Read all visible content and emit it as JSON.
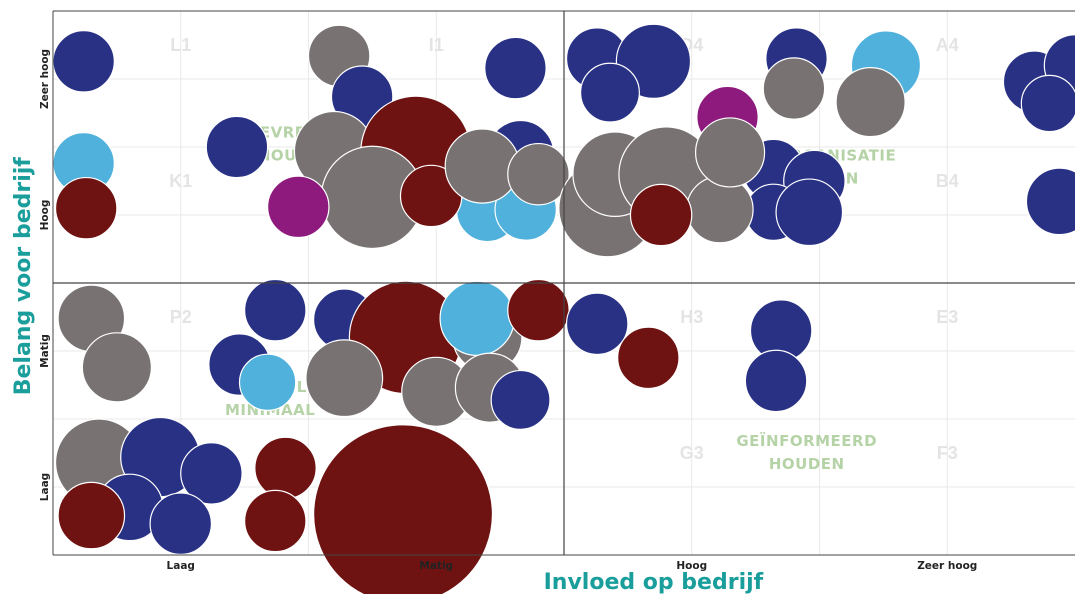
{
  "chart_data": {
    "type": "bubble",
    "title": "",
    "xlabel": "Invloed op bedrijf",
    "ylabel": "Belang voor bedrijf",
    "x_ticks": [
      "Laag",
      "Matig",
      "Hoog",
      "Zeer hoog"
    ],
    "y_ticks": [
      "Laag",
      "Matig",
      "Hoog",
      "Zeer hoog"
    ],
    "xlim": [
      0,
      4
    ],
    "ylim": [
      0,
      4
    ],
    "colors": {
      "navy": "#293185",
      "gray": "#787273",
      "maroon": "#6f1312",
      "lightblue": "#4fb1dc",
      "magenta": "#8e1a7e",
      "axis_title": "#1a9e9b",
      "grid": "#e9e9e9",
      "frame": "#444444"
    },
    "cells": [
      {
        "label": "L1",
        "x": 0.5,
        "y": 3.75
      },
      {
        "label": "I1",
        "x": 1.5,
        "y": 3.75
      },
      {
        "label": "D4",
        "x": 2.5,
        "y": 3.75
      },
      {
        "label": "A4",
        "x": 3.5,
        "y": 3.75
      },
      {
        "label": "K1",
        "x": 0.5,
        "y": 2.75
      },
      {
        "label": "B4",
        "x": 3.5,
        "y": 2.75
      },
      {
        "label": "P2",
        "x": 0.5,
        "y": 1.75
      },
      {
        "label": "H3",
        "x": 2.5,
        "y": 1.75
      },
      {
        "label": "E3",
        "x": 3.5,
        "y": 1.75
      },
      {
        "label": "G3",
        "x": 2.5,
        "y": 0.75
      },
      {
        "label": "F3",
        "x": 3.5,
        "y": 0.75
      }
    ],
    "quadrant_labels": [
      {
        "lines": [
          "TEVREDEN",
          "HOUDEN"
        ],
        "x": 0.95,
        "y": 3.07
      },
      {
        "lines": [
          "OP DE ORGANISATIE",
          "BETREKKEN"
        ],
        "x": 2.95,
        "y": 2.9
      },
      {
        "lines": [
          "CONTROLE",
          "MINIMAAL"
        ],
        "x": 0.85,
        "y": 1.2
      },
      {
        "lines": [
          "GEÏNFORMEERD",
          "HOUDEN"
        ],
        "x": 2.95,
        "y": 0.8
      }
    ],
    "bubbles": [
      {
        "x": 0.12,
        "y": 3.63,
        "r": 0.12,
        "c": "navy"
      },
      {
        "x": 1.12,
        "y": 3.67,
        "r": 0.12,
        "c": "gray"
      },
      {
        "x": 1.21,
        "y": 3.37,
        "r": 0.12,
        "c": "navy"
      },
      {
        "x": 1.81,
        "y": 3.58,
        "r": 0.12,
        "c": "navy"
      },
      {
        "x": 2.13,
        "y": 3.65,
        "r": 0.12,
        "c": "navy"
      },
      {
        "x": 2.35,
        "y": 3.63,
        "r": 0.145,
        "c": "navy"
      },
      {
        "x": 2.18,
        "y": 3.4,
        "r": 0.115,
        "c": "navy"
      },
      {
        "x": 2.91,
        "y": 3.65,
        "r": 0.12,
        "c": "navy"
      },
      {
        "x": 3.26,
        "y": 3.6,
        "r": 0.135,
        "c": "lightblue"
      },
      {
        "x": 3.84,
        "y": 3.48,
        "r": 0.12,
        "c": "navy"
      },
      {
        "x": 4.0,
        "y": 3.6,
        "r": 0.12,
        "c": "navy"
      },
      {
        "x": 3.9,
        "y": 3.32,
        "r": 0.11,
        "c": "navy"
      },
      {
        "x": 2.9,
        "y": 3.43,
        "r": 0.12,
        "c": "gray"
      },
      {
        "x": 2.64,
        "y": 3.22,
        "r": 0.12,
        "c": "magenta"
      },
      {
        "x": 3.2,
        "y": 3.33,
        "r": 0.135,
        "c": "gray"
      },
      {
        "x": 0.72,
        "y": 3.0,
        "r": 0.12,
        "c": "navy"
      },
      {
        "x": 0.12,
        "y": 2.88,
        "r": 0.12,
        "c": "lightblue"
      },
      {
        "x": 0.13,
        "y": 2.55,
        "r": 0.12,
        "c": "maroon"
      },
      {
        "x": 1.83,
        "y": 2.95,
        "r": 0.13,
        "c": "navy"
      },
      {
        "x": 1.1,
        "y": 2.97,
        "r": 0.155,
        "c": "gray"
      },
      {
        "x": 1.42,
        "y": 2.97,
        "r": 0.215,
        "c": "maroon"
      },
      {
        "x": 1.25,
        "y": 2.63,
        "r": 0.2,
        "c": "gray"
      },
      {
        "x": 0.96,
        "y": 2.56,
        "r": 0.12,
        "c": "magenta"
      },
      {
        "x": 1.7,
        "y": 2.53,
        "r": 0.12,
        "c": "lightblue"
      },
      {
        "x": 1.85,
        "y": 2.54,
        "r": 0.12,
        "c": "lightblue"
      },
      {
        "x": 1.48,
        "y": 2.64,
        "r": 0.12,
        "c": "maroon"
      },
      {
        "x": 1.68,
        "y": 2.86,
        "r": 0.145,
        "c": "gray"
      },
      {
        "x": 1.9,
        "y": 2.8,
        "r": 0.12,
        "c": "gray"
      },
      {
        "x": 2.82,
        "y": 2.83,
        "r": 0.12,
        "c": "navy"
      },
      {
        "x": 2.98,
        "y": 2.75,
        "r": 0.12,
        "c": "navy"
      },
      {
        "x": 2.82,
        "y": 2.52,
        "r": 0.11,
        "c": "navy"
      },
      {
        "x": 2.96,
        "y": 2.52,
        "r": 0.13,
        "c": "navy"
      },
      {
        "x": 3.94,
        "y": 2.6,
        "r": 0.13,
        "c": "navy"
      },
      {
        "x": 2.17,
        "y": 2.55,
        "r": 0.19,
        "c": "gray"
      },
      {
        "x": 2.2,
        "y": 2.8,
        "r": 0.165,
        "c": "gray"
      },
      {
        "x": 2.4,
        "y": 2.8,
        "r": 0.185,
        "c": "gray"
      },
      {
        "x": 2.61,
        "y": 2.54,
        "r": 0.13,
        "c": "gray"
      },
      {
        "x": 2.65,
        "y": 2.96,
        "r": 0.135,
        "c": "gray"
      },
      {
        "x": 2.38,
        "y": 2.5,
        "r": 0.12,
        "c": "maroon"
      },
      {
        "x": 0.15,
        "y": 1.74,
        "r": 0.13,
        "c": "gray"
      },
      {
        "x": 0.87,
        "y": 1.8,
        "r": 0.12,
        "c": "navy"
      },
      {
        "x": 0.73,
        "y": 1.4,
        "r": 0.12,
        "c": "navy"
      },
      {
        "x": 0.84,
        "y": 1.27,
        "r": 0.11,
        "c": "lightblue"
      },
      {
        "x": 0.25,
        "y": 1.38,
        "r": 0.135,
        "c": "gray"
      },
      {
        "x": 1.14,
        "y": 1.73,
        "r": 0.12,
        "c": "navy"
      },
      {
        "x": 1.38,
        "y": 1.6,
        "r": 0.22,
        "c": "maroon"
      },
      {
        "x": 1.14,
        "y": 1.3,
        "r": 0.15,
        "c": "gray"
      },
      {
        "x": 1.7,
        "y": 1.6,
        "r": 0.135,
        "c": "gray"
      },
      {
        "x": 1.66,
        "y": 1.74,
        "r": 0.145,
        "c": "lightblue"
      },
      {
        "x": 1.9,
        "y": 1.8,
        "r": 0.12,
        "c": "maroon"
      },
      {
        "x": 1.5,
        "y": 1.2,
        "r": 0.135,
        "c": "gray"
      },
      {
        "x": 1.71,
        "y": 1.23,
        "r": 0.135,
        "c": "gray"
      },
      {
        "x": 1.83,
        "y": 1.14,
        "r": 0.115,
        "c": "navy"
      },
      {
        "x": 2.13,
        "y": 1.7,
        "r": 0.12,
        "c": "navy"
      },
      {
        "x": 2.33,
        "y": 1.45,
        "r": 0.12,
        "c": "maroon"
      },
      {
        "x": 2.85,
        "y": 1.65,
        "r": 0.12,
        "c": "navy"
      },
      {
        "x": 2.83,
        "y": 1.28,
        "r": 0.12,
        "c": "navy"
      },
      {
        "x": 0.18,
        "y": 0.68,
        "r": 0.17,
        "c": "gray"
      },
      {
        "x": 0.42,
        "y": 0.72,
        "r": 0.155,
        "c": "navy"
      },
      {
        "x": 0.62,
        "y": 0.6,
        "r": 0.12,
        "c": "navy"
      },
      {
        "x": 0.3,
        "y": 0.35,
        "r": 0.13,
        "c": "navy"
      },
      {
        "x": 0.5,
        "y": 0.23,
        "r": 0.12,
        "c": "navy"
      },
      {
        "x": 0.15,
        "y": 0.29,
        "r": 0.13,
        "c": "maroon"
      },
      {
        "x": 0.91,
        "y": 0.64,
        "r": 0.12,
        "c": "maroon"
      },
      {
        "x": 0.87,
        "y": 0.25,
        "r": 0.12,
        "c": "maroon"
      },
      {
        "x": 1.37,
        "y": 0.3,
        "r": 0.35,
        "c": "maroon"
      }
    ]
  }
}
